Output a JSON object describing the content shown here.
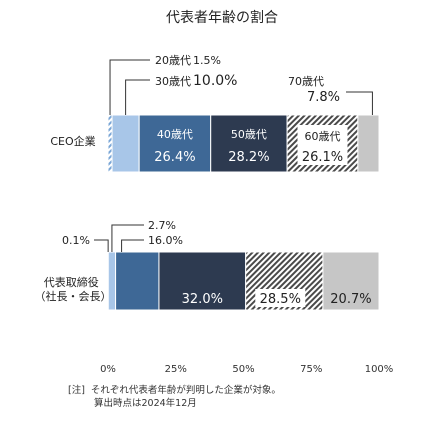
{
  "chart_data": {
    "type": "bar",
    "stacked": true,
    "orientation": "horizontal",
    "title": "代表者年齢の割合",
    "categories": [
      "CEO企業",
      "代表取締役\n（社長・会長）"
    ],
    "series": [
      {
        "name": "20歳代",
        "values": [
          1.5,
          0.1
        ],
        "labels": [
          "1.5%",
          "0.1%"
        ],
        "fill": "hatch-light",
        "color": "#7aa6d6"
      },
      {
        "name": "30歳代",
        "values": [
          10.0,
          2.7
        ],
        "labels": [
          "10.0%",
          "2.7%"
        ],
        "fill": "solid",
        "color": "#a8c6e8"
      },
      {
        "name": "40歳代",
        "values": [
          26.4,
          16.0
        ],
        "labels": [
          "26.4%",
          "16.0%"
        ],
        "fill": "solid",
        "color": "#3e6896"
      },
      {
        "name": "50歳代",
        "values": [
          28.2,
          32.0
        ],
        "labels": [
          "28.2%",
          "32.0%"
        ],
        "fill": "solid",
        "color": "#2d3a50"
      },
      {
        "name": "60歳代",
        "values": [
          26.1,
          28.5
        ],
        "labels": [
          "26.1%",
          "28.5%"
        ],
        "fill": "hatch-dark",
        "color": "#555555"
      },
      {
        "name": "70歳代",
        "values": [
          7.8,
          20.7
        ],
        "labels": [
          "7.8%",
          "20.7%"
        ],
        "fill": "solid",
        "color": "#c6c6c6"
      }
    ],
    "xticks": [
      "0%",
      "25%",
      "50%",
      "75%",
      "100%"
    ],
    "xlim": [
      0,
      100
    ],
    "grid": false
  },
  "note": {
    "label": "[注]",
    "lines": [
      "それぞれ代表者年齢が判明した企業が対象。",
      "算出時点は2024年12月"
    ]
  }
}
